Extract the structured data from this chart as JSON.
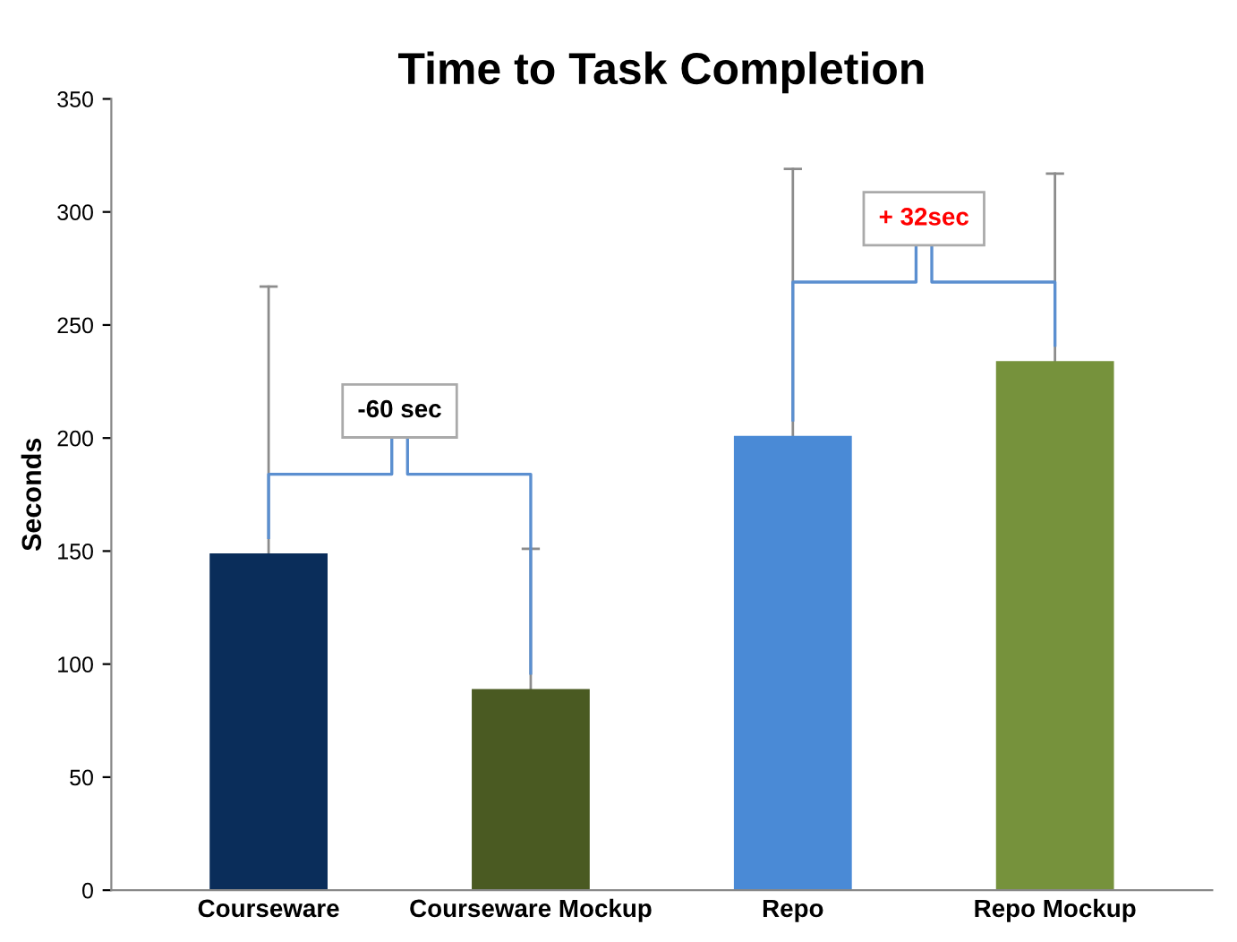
{
  "chart_data": {
    "type": "bar",
    "title": "Time to Task Completion",
    "ylabel": "Seconds",
    "categories": [
      "Courseware",
      "Courseware Mockup",
      "Repo",
      "Repo Mockup"
    ],
    "values": [
      149,
      89,
      201,
      234
    ],
    "colors": [
      "#0a2d5a",
      "#4a5a22",
      "#4a8ad6",
      "#76923c"
    ],
    "errors": [
      [
        149,
        267
      ],
      [
        89,
        151
      ],
      [
        201,
        319
      ],
      [
        234,
        317
      ]
    ],
    "ylim": [
      0,
      350
    ],
    "yticks": [
      0,
      50,
      100,
      150,
      200,
      250,
      300,
      350
    ],
    "grid": false,
    "annotations": [
      "-60 sec",
      "+ 32sec"
    ]
  }
}
